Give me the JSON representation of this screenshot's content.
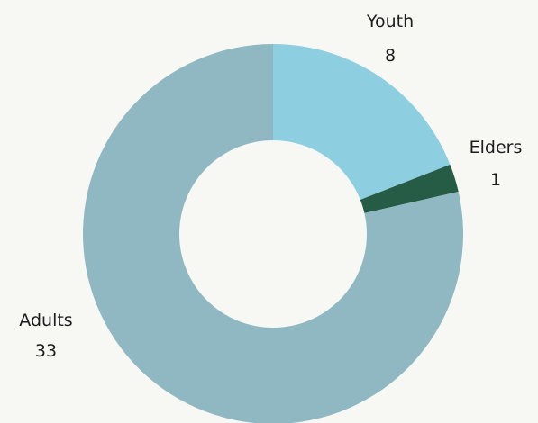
{
  "chart_data": {
    "type": "pie",
    "donut": true,
    "categories": [
      "Youth",
      "Elders",
      "Adults"
    ],
    "values": [
      8,
      1,
      33
    ],
    "colors": [
      "#8dcfe0",
      "#265c45",
      "#8fb8c3"
    ],
    "labels": [
      {
        "name": "Youth",
        "value": "8"
      },
      {
        "name": "Elders",
        "value": "1"
      },
      {
        "name": "Adults",
        "value": "33"
      }
    ]
  }
}
